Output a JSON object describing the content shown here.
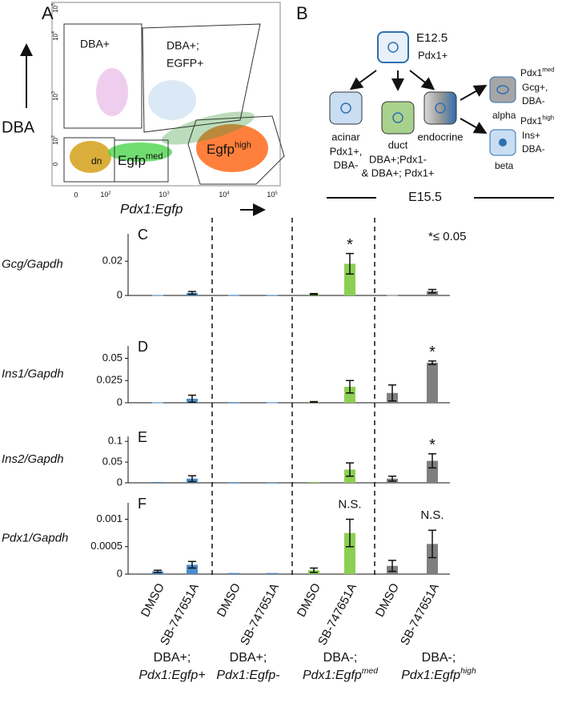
{
  "panel_a": {
    "letter": "A",
    "ylabel": "DBA",
    "xlabel": "Pdx1:Egfp",
    "xtick_labels": [
      "0",
      {
        "base": "10",
        "sup": "2"
      },
      {
        "base": "10",
        "sup": "3"
      },
      {
        "base": "10",
        "sup": "4"
      },
      {
        "base": "10",
        "sup": "5"
      }
    ],
    "ytick_labels": [
      "0",
      {
        "base": "10",
        "sup": "2"
      },
      {
        "base": "10",
        "sup": "3"
      },
      {
        "base": "10",
        "sup": "4"
      },
      {
        "base": "10",
        "sup": "5"
      }
    ],
    "gates": {
      "dba_pos": "DBA+",
      "dba_egfp_1": "DBA+;",
      "dba_egfp_2": "EGFP+",
      "dn": "dn",
      "med": {
        "base": "Egfp",
        "sup": "med"
      },
      "high": {
        "base": "Egfp",
        "sup": "high"
      }
    }
  },
  "panel_b": {
    "letter": "B",
    "root": [
      "E12.5",
      "Pdx1+"
    ],
    "acinar": [
      "acinar",
      "Pdx1+,",
      "DBA-"
    ],
    "duct": [
      "duct",
      "DBA+;Pdx1-",
      "& DBA+; Pdx1+"
    ],
    "endocrine": "endocrine",
    "alpha": [
      {
        "base": "Pdx1",
        "sup": "med"
      },
      "Gcg+,",
      "DBA-",
      "alpha"
    ],
    "beta": [
      {
        "base": "Pdx1",
        "sup": "high"
      },
      "Ins+",
      "DBA-",
      "beta"
    ],
    "stage": "E15.5"
  },
  "significance_note": "*≤ 0.05",
  "groups": [
    {
      "lines": [
        {
          "text": "DBA+;",
          "color": "#3a7ebf"
        },
        {
          "text": "Pdx1:Egfp+",
          "color": "#3a7ebf"
        }
      ],
      "color": "#4a8ccc"
    },
    {
      "lines": [
        {
          "text": "DBA+;",
          "color": "#3a7ebf"
        },
        {
          "text": "Pdx1:Egfp-",
          "color": "#3a7ebf"
        }
      ],
      "color": "#4a8ccc"
    },
    {
      "lines": [
        {
          "text": "DBA-;",
          "color": "#82c341"
        },
        {
          "text": {
            "base": "Pdx1:Egfp",
            "sup": "med"
          },
          "color": "#4a7f2a"
        }
      ],
      "color": "#8ccf52"
    },
    {
      "lines": [
        {
          "text": "DBA-;",
          "color": "#999999"
        },
        {
          "text": {
            "base": "Pdx1:Egfp",
            "sup": "high"
          },
          "color": "#555555"
        }
      ],
      "color": "#7f7f7f"
    }
  ],
  "chart_data": [
    {
      "type": "bar",
      "panel": "C",
      "ylabel": "Gcg/Gapdh",
      "ylim": [
        0,
        0.036
      ],
      "yticks": [
        0,
        0.02
      ],
      "values": [
        0.0002,
        0.0015,
        0.0003,
        0.0003,
        0.0008,
        0.0185,
        0.0002,
        0.0025
      ],
      "errors": [
        0,
        0.0008,
        0,
        0,
        0.0003,
        0.006,
        0,
        0.001
      ],
      "significance": [
        null,
        null,
        null,
        null,
        null,
        "*",
        null,
        null
      ]
    },
    {
      "type": "bar",
      "panel": "D",
      "ylabel": "Ins1/Gapdh",
      "ylim": [
        0,
        0.064
      ],
      "yticks": [
        0,
        0.025,
        0.05
      ],
      "values": [
        0.0005,
        0.0045,
        0.0002,
        0.0005,
        0.001,
        0.018,
        0.011,
        0.045
      ],
      "errors": [
        0,
        0.004,
        0,
        0,
        0.0003,
        0.007,
        0.009,
        0.002
      ],
      "significance": [
        null,
        null,
        null,
        null,
        null,
        null,
        null,
        "*"
      ]
    },
    {
      "type": "bar",
      "panel": "E",
      "ylabel": "Ins2/Gapdh",
      "ylim": [
        0,
        0.112
      ],
      "yticks": [
        0,
        0.05,
        0.1
      ],
      "values": [
        0.002,
        0.01,
        0.0003,
        0.0003,
        0.002,
        0.032,
        0.01,
        0.053
      ],
      "errors": [
        0,
        0.007,
        0,
        0,
        0,
        0.016,
        0.006,
        0.017
      ],
      "significance": [
        null,
        null,
        null,
        null,
        null,
        null,
        null,
        "*"
      ]
    },
    {
      "type": "bar",
      "panel": "F",
      "ylabel": "Pdx1/Gapdh",
      "ylim": [
        0,
        0.0013
      ],
      "yticks": [
        0,
        0.0005,
        0.001
      ],
      "categories": [
        "DMSO",
        "SB-747651A",
        "DMSO",
        "SB-747651A",
        "DMSO",
        "SB-747651A",
        "DMSO",
        "SB-747651A"
      ],
      "values": [
        5e-05,
        0.00017,
        2e-05,
        2e-05,
        7e-05,
        0.00075,
        0.00015,
        0.00055
      ],
      "errors": [
        2e-05,
        6e-05,
        0,
        0,
        4e-05,
        0.00025,
        0.0001,
        0.00025
      ],
      "significance": [
        null,
        null,
        null,
        null,
        null,
        "N.S.",
        null,
        "N.S."
      ]
    }
  ]
}
